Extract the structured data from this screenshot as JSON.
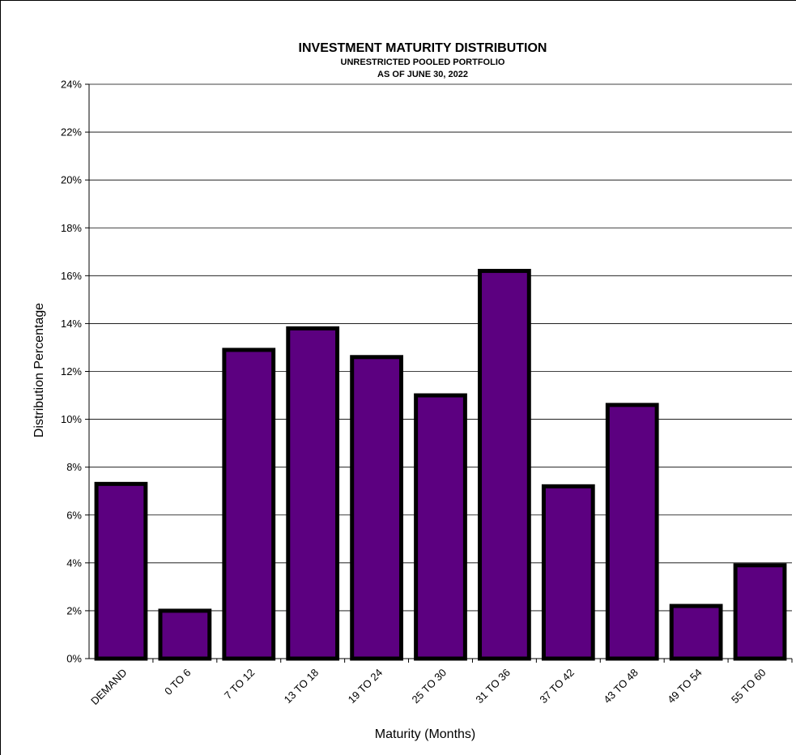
{
  "chart_data": {
    "type": "bar",
    "title": "INVESTMENT MATURITY DISTRIBUTION",
    "subtitle": [
      "UNRESTRICTED POOLED PORTFOLIO",
      "AS OF JUNE 30, 2022"
    ],
    "xlabel": "Maturity (Months)",
    "ylabel": "Distribution  Percentage",
    "categories": [
      "DEMAND",
      "0 TO 6",
      "7 TO 12",
      "13 TO 18",
      "19 TO 24",
      "25 TO 30",
      "31 TO 36",
      "37 TO 42",
      "43 TO 48",
      "49 TO 54",
      "55 TO 60"
    ],
    "values": [
      7.3,
      2.0,
      12.9,
      13.8,
      12.6,
      11.0,
      16.2,
      7.2,
      10.6,
      2.2,
      3.9
    ],
    "ylim": [
      0,
      24
    ],
    "yticks": [
      "0%",
      "2%",
      "4%",
      "6%",
      "8%",
      "10%",
      "12%",
      "14%",
      "16%",
      "18%",
      "20%",
      "22%",
      "24%"
    ],
    "grid": true,
    "bar_color": "#5c0080",
    "bar_edge_color": "#000000"
  }
}
